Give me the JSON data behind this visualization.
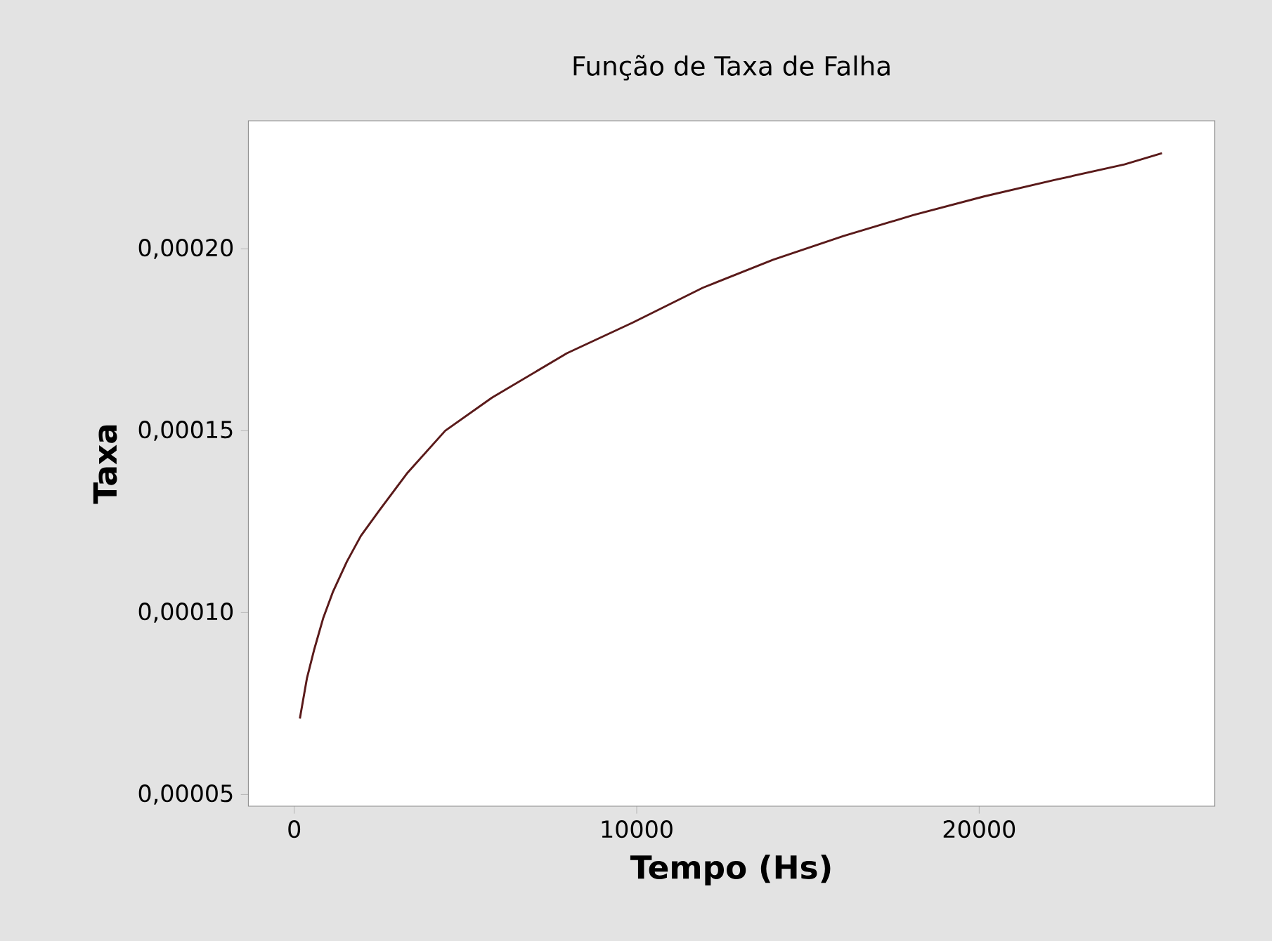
{
  "chart_data": {
    "type": "line",
    "title": "Função de Taxa de Falha",
    "xlabel": "Tempo (Hs)",
    "ylabel": "Taxa",
    "x": [
      164,
      369,
      575,
      849,
      1124,
      1535,
      1945,
      2491,
      3312,
      4408,
      5774,
      7962,
      9878,
      11930,
      13982,
      16034,
      18086,
      20138,
      22190,
      24242,
      25338
    ],
    "series": [
      {
        "color": "#5a1a1a",
        "values": [
          7.09e-05,
          8.19e-05,
          8.96e-05,
          9.86e-05,
          0.0001056,
          0.000114,
          0.0001211,
          0.0001282,
          0.0001385,
          0.00015,
          0.0001591,
          0.0001713,
          0.0001797,
          0.0001893,
          0.000197,
          0.0002035,
          0.0002093,
          0.0002144,
          0.0002189,
          0.0002232,
          0.0002263
        ]
      }
    ],
    "xlim": [
      -1340,
      26880
    ],
    "ylim": [
      4.68e-05,
      0.0002352
    ],
    "xticks": [
      0,
      10000,
      20000
    ],
    "yticks": [
      {
        "value": 5e-05,
        "label": "0,00005"
      },
      {
        "value": 0.0001,
        "label": "0,00010"
      },
      {
        "value": 0.00015,
        "label": "0,00015"
      },
      {
        "value": 0.0002,
        "label": "0,00020"
      }
    ],
    "grid": false,
    "marker": "none",
    "line_style": "solid"
  }
}
